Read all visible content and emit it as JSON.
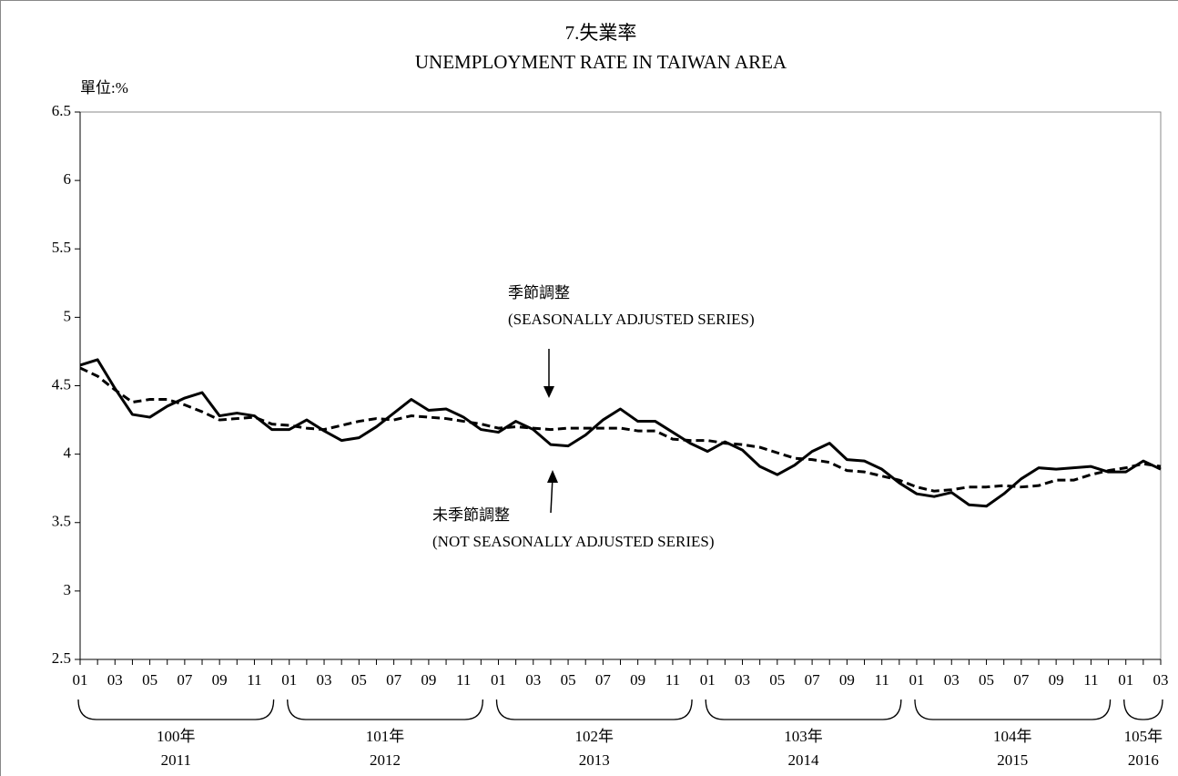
{
  "chart_data": {
    "type": "line",
    "title": "7.失業率",
    "subtitle": "UNEMPLOYMENT RATE IN TAIWAN AREA",
    "y_label": "單位:%",
    "categories": [
      "01",
      null,
      "03",
      null,
      "05",
      null,
      "07",
      null,
      "09",
      null,
      "11",
      null,
      "01",
      null,
      "03",
      null,
      "05",
      null,
      "07",
      null,
      "09",
      null,
      "11",
      null,
      "01",
      null,
      "03",
      null,
      "05",
      null,
      "07",
      null,
      "09",
      null,
      "11",
      null,
      "01",
      null,
      "03",
      null,
      "05",
      null,
      "07",
      null,
      "09",
      null,
      "11",
      null,
      "01",
      null,
      "03",
      null,
      "05",
      null,
      "07",
      null,
      "09",
      null,
      "11",
      null,
      "01",
      null,
      "03"
    ],
    "year_groups": [
      {
        "label": "100年",
        "year": "2011"
      },
      {
        "label": "101年",
        "year": "2012"
      },
      {
        "label": "102年",
        "year": "2013"
      },
      {
        "label": "103年",
        "year": "2014"
      },
      {
        "label": "104年",
        "year": "2015"
      },
      {
        "label": "105年",
        "year": "2016"
      }
    ],
    "series": [
      {
        "name": "季節調整",
        "name_en": "(SEASONALLY ADJUSTED SERIES)",
        "color": "#000000",
        "dashed": true,
        "values": [
          4.63,
          4.57,
          4.47,
          4.38,
          4.4,
          4.4,
          4.36,
          4.31,
          4.25,
          4.26,
          4.27,
          4.22,
          4.21,
          4.19,
          4.18,
          4.21,
          4.24,
          4.26,
          4.25,
          4.28,
          4.27,
          4.26,
          4.24,
          4.22,
          4.19,
          4.2,
          4.19,
          4.18,
          4.19,
          4.19,
          4.19,
          4.19,
          4.17,
          4.17,
          4.11,
          4.1,
          4.1,
          4.08,
          4.07,
          4.05,
          4.01,
          3.97,
          3.96,
          3.94,
          3.88,
          3.87,
          3.84,
          3.81,
          3.76,
          3.73,
          3.74,
          3.76,
          3.76,
          3.77,
          3.76,
          3.77,
          3.81,
          3.81,
          3.85,
          3.88,
          3.9,
          3.93,
          3.91
        ]
      },
      {
        "name": "未季節調整",
        "name_en": "(NOT SEASONALLY ADJUSTED SERIES)",
        "color": "#000000",
        "dashed": false,
        "values": [
          4.65,
          4.69,
          4.48,
          4.29,
          4.27,
          4.35,
          4.41,
          4.45,
          4.28,
          4.3,
          4.28,
          4.18,
          4.18,
          4.25,
          4.17,
          4.1,
          4.12,
          4.2,
          4.3,
          4.4,
          4.32,
          4.33,
          4.27,
          4.18,
          4.16,
          4.24,
          4.18,
          4.07,
          4.06,
          4.14,
          4.25,
          4.33,
          4.24,
          4.24,
          4.16,
          4.08,
          4.02,
          4.09,
          4.03,
          3.91,
          3.85,
          3.92,
          4.02,
          4.08,
          3.96,
          3.95,
          3.89,
          3.79,
          3.71,
          3.69,
          3.72,
          3.63,
          3.62,
          3.71,
          3.82,
          3.9,
          3.89,
          3.9,
          3.91,
          3.87,
          3.87,
          3.95,
          3.89
        ]
      }
    ],
    "ylim": [
      2.5,
      6.5
    ],
    "yticks": [
      2.5,
      3,
      3.5,
      4,
      4.5,
      5,
      5.5,
      6,
      6.5
    ]
  }
}
